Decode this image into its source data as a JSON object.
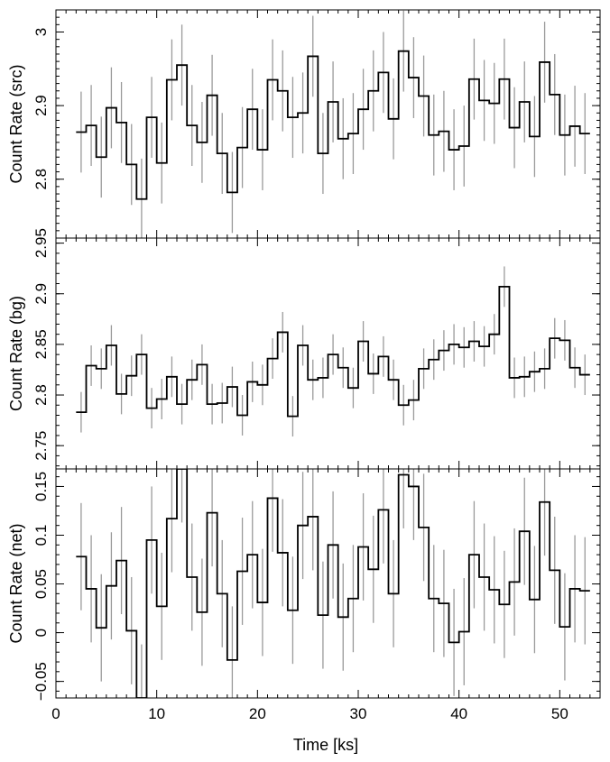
{
  "chart_data": [
    {
      "type": "line",
      "ylabel": "Count Rate (src)",
      "ylim": [
        2.72,
        3.03
      ],
      "yticks": [
        2.8,
        2.9,
        3.0
      ],
      "yticklabels": [
        "2.8",
        "2.9",
        "3"
      ],
      "ytick_minor": 0.01,
      "xlim": [
        0,
        54
      ],
      "x": [
        2.5,
        3.5,
        4.5,
        5.5,
        6.5,
        7.5,
        8.5,
        9.5,
        10.5,
        11.5,
        12.5,
        13.5,
        14.5,
        15.5,
        16.5,
        17.5,
        18.5,
        19.5,
        20.5,
        21.5,
        22.5,
        23.5,
        24.5,
        25.5,
        26.5,
        27.5,
        28.5,
        29.5,
        30.5,
        31.5,
        32.5,
        33.5,
        34.5,
        35.5,
        36.5,
        37.5,
        38.5,
        39.5,
        40.5,
        41.5,
        42.5,
        43.5,
        44.5,
        45.5,
        46.5,
        47.5,
        48.5,
        49.5,
        50.5,
        51.5,
        52.5
      ],
      "y": [
        2.864,
        2.873,
        2.83,
        2.897,
        2.877,
        2.82,
        2.773,
        2.884,
        2.822,
        2.935,
        2.955,
        2.873,
        2.85,
        2.914,
        2.835,
        2.782,
        2.843,
        2.895,
        2.84,
        2.935,
        2.92,
        2.884,
        2.89,
        2.967,
        2.835,
        2.905,
        2.855,
        2.862,
        2.895,
        2.92,
        2.945,
        2.882,
        2.974,
        2.938,
        2.913,
        2.86,
        2.865,
        2.84,
        2.845,
        2.936,
        2.907,
        2.903,
        2.936,
        2.87,
        2.905,
        2.858,
        2.959,
        2.915,
        2.86,
        2.872,
        2.862
      ],
      "yerr": 0.055,
      "xerr": 0.5
    },
    {
      "type": "line",
      "ylabel": "Count Rate (bg)",
      "ylim": [
        2.727,
        2.955
      ],
      "yticks": [
        2.75,
        2.8,
        2.85,
        2.9,
        2.95
      ],
      "yticklabels": [
        "2.75",
        "2.8",
        "2.85",
        "2.9",
        "2.95"
      ],
      "ytick_minor": 0.01,
      "xlim": [
        0,
        54
      ],
      "x": [
        2.5,
        3.5,
        4.5,
        5.5,
        6.5,
        7.5,
        8.5,
        9.5,
        10.5,
        11.5,
        12.5,
        13.5,
        14.5,
        15.5,
        16.5,
        17.5,
        18.5,
        19.5,
        20.5,
        21.5,
        22.5,
        23.5,
        24.5,
        25.5,
        26.5,
        27.5,
        28.5,
        29.5,
        30.5,
        31.5,
        32.5,
        33.5,
        34.5,
        35.5,
        36.5,
        37.5,
        38.5,
        39.5,
        40.5,
        41.5,
        42.5,
        43.5,
        44.5,
        45.5,
        46.5,
        47.5,
        48.5,
        49.5,
        50.5,
        51.5,
        52.5
      ],
      "y": [
        2.783,
        2.829,
        2.826,
        2.849,
        2.801,
        2.819,
        2.84,
        2.787,
        2.796,
        2.818,
        2.791,
        2.815,
        2.83,
        2.791,
        2.792,
        2.808,
        2.78,
        2.813,
        2.81,
        2.836,
        2.862,
        2.779,
        2.849,
        2.815,
        2.817,
        2.84,
        2.827,
        2.807,
        2.853,
        2.821,
        2.838,
        2.815,
        2.79,
        2.795,
        2.826,
        2.835,
        2.844,
        2.85,
        2.847,
        2.853,
        2.848,
        2.86,
        2.907,
        2.817,
        2.818,
        2.823,
        2.826,
        2.856,
        2.854,
        2.827,
        2.82
      ],
      "yerr": 0.02,
      "xerr": 0.5
    },
    {
      "type": "line",
      "ylabel": "Count Rate (net)",
      "xlabel": "Time [ks]",
      "ylim": [
        -0.067,
        0.168
      ],
      "yticks": [
        -0.05,
        0,
        0.05,
        0.1,
        0.15
      ],
      "yticklabels": [
        "−0.05",
        "0",
        "0.05",
        "0.1",
        "0.15"
      ],
      "ytick_minor": 0.01,
      "xlim": [
        0,
        54
      ],
      "xticks": [
        0,
        10,
        20,
        30,
        40,
        50
      ],
      "xticklabels": [
        "0",
        "10",
        "20",
        "30",
        "40",
        "50"
      ],
      "xtick_minor": 1,
      "x": [
        2.5,
        3.5,
        4.5,
        5.5,
        6.5,
        7.5,
        8.5,
        9.5,
        10.5,
        11.5,
        12.5,
        13.5,
        14.5,
        15.5,
        16.5,
        17.5,
        18.5,
        19.5,
        20.5,
        21.5,
        22.5,
        23.5,
        24.5,
        25.5,
        26.5,
        27.5,
        28.5,
        29.5,
        30.5,
        31.5,
        32.5,
        33.5,
        34.5,
        35.5,
        36.5,
        37.5,
        38.5,
        39.5,
        40.5,
        41.5,
        42.5,
        43.5,
        44.5,
        45.5,
        46.5,
        47.5,
        48.5,
        49.5,
        50.5,
        51.5,
        52.5
      ],
      "y": [
        0.078,
        0.045,
        0.005,
        0.048,
        0.074,
        0.002,
        -0.067,
        0.095,
        0.027,
        0.117,
        0.168,
        0.057,
        0.021,
        0.123,
        0.04,
        -0.028,
        0.063,
        0.08,
        0.031,
        0.138,
        0.082,
        0.023,
        0.11,
        0.119,
        0.018,
        0.09,
        0.016,
        0.035,
        0.088,
        0.065,
        0.126,
        0.04,
        0.162,
        0.15,
        0.108,
        0.035,
        0.03,
        -0.01,
        0.001,
        0.08,
        0.057,
        0.044,
        0.029,
        0.052,
        0.104,
        0.034,
        0.134,
        0.064,
        0.006,
        0.045,
        0.043
      ],
      "yerr": 0.055,
      "xerr": 0.5
    }
  ],
  "colors": {
    "histogram": "#000000",
    "error_bars": "#9a9a9a",
    "frame": "#000000"
  }
}
